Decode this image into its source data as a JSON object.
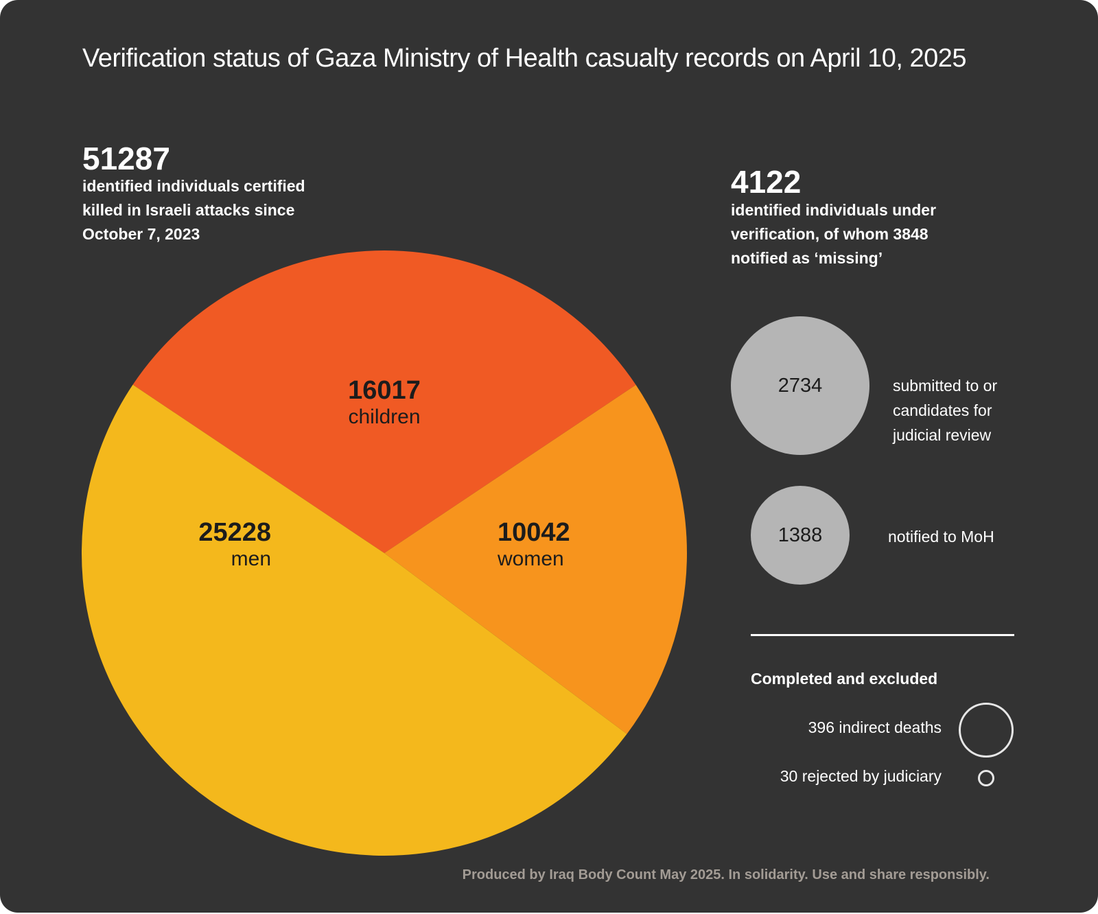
{
  "title": "Verification status of Gaza Ministry of Health casualty records on April 10, 2025",
  "certified": {
    "total": "51287",
    "description_lines": [
      "identified individuals certified",
      "killed in Israeli attacks since",
      "October 7, 2023"
    ]
  },
  "verification": {
    "total": "4122",
    "description_lines": [
      "identified individuals under",
      "verification,  of whom  3848",
      "notified as ‘missing’"
    ],
    "bubbles": [
      {
        "value": "2734",
        "label_lines": [
          "submitted to or",
          "candidates for",
          "judicial review"
        ]
      },
      {
        "value": "1388",
        "label_lines": [
          "notified to MoH"
        ]
      }
    ]
  },
  "completed": {
    "title": "Completed and excluded",
    "items": [
      {
        "label": "396 indirect deaths"
      },
      {
        "label": "30 rejected by judiciary"
      }
    ]
  },
  "footer": "Produced by Iraq Body Count May 2025. In solidarity. Use and share responsibly.",
  "colors": {
    "background": "#333333",
    "children": "#f05a24",
    "women": "#f7941d",
    "men": "#f4b81c",
    "bubble": "#b5b5b5"
  },
  "chart_data": {
    "type": "pie",
    "slices": [
      {
        "name": "children",
        "value": 16017,
        "display_value": "16017",
        "color": "#f05a24"
      },
      {
        "name": "women",
        "value": 10042,
        "display_value": "10042",
        "color": "#f7941d"
      },
      {
        "name": "men",
        "value": 25228,
        "display_value": "25228",
        "color": "#f4b81c"
      }
    ],
    "total": 51287
  }
}
